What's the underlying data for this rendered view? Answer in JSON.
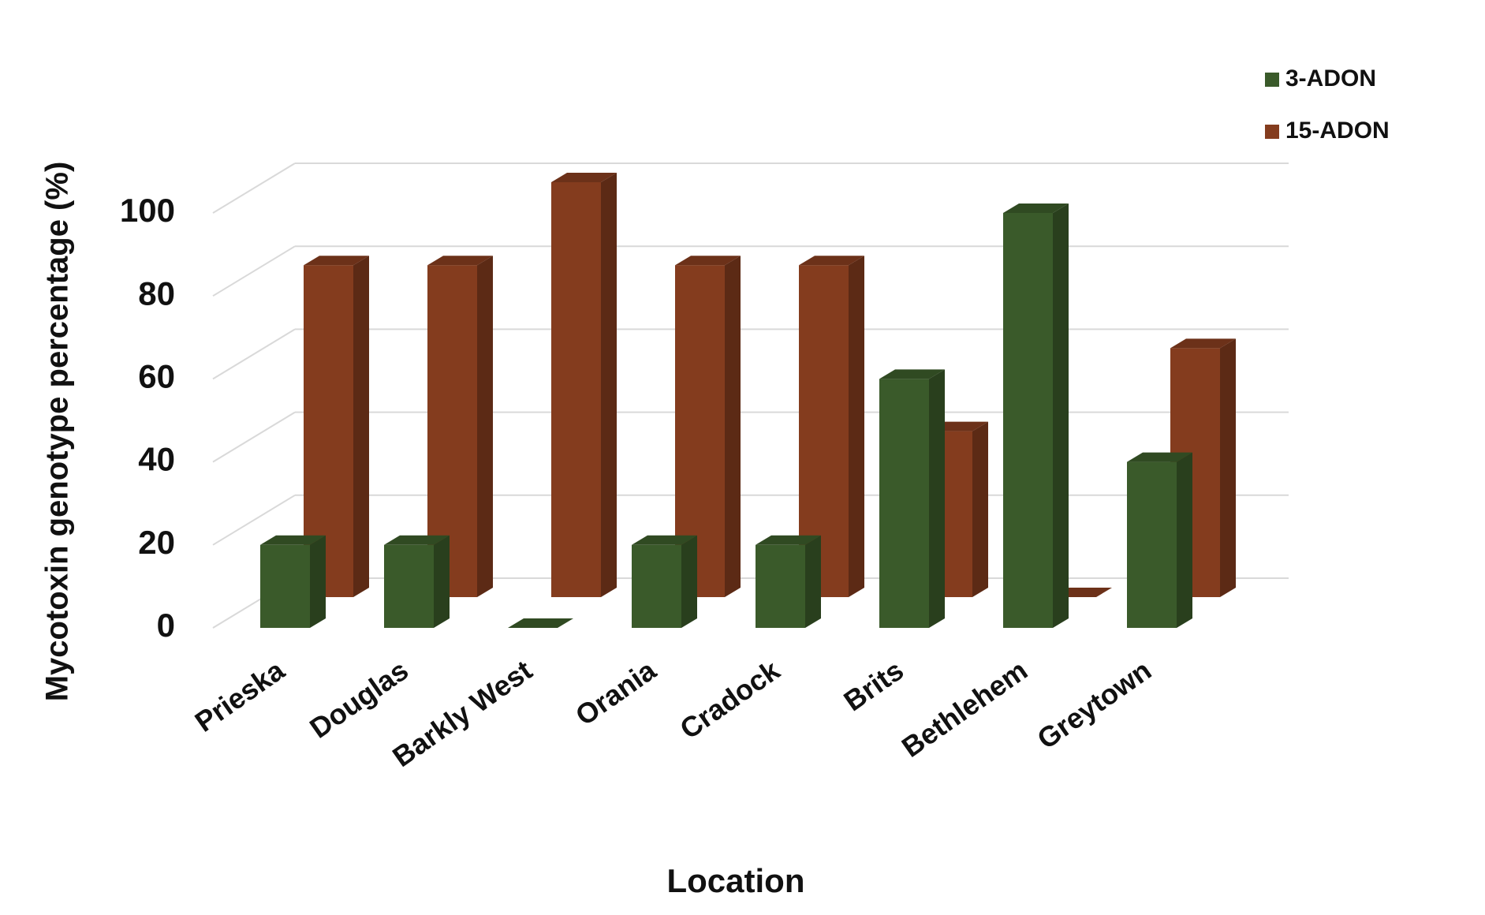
{
  "chart_data": {
    "type": "bar3d",
    "y_label": "Mycotoxin genotype percentage (%)",
    "x_label": "Location",
    "categories": [
      "Prieska",
      "Douglas",
      "Barkly West",
      "Orania",
      "Cradock",
      "Brits",
      "Bethlehem",
      "Greytown"
    ],
    "series": [
      {
        "name": "3-ADON",
        "color": "#3a5a2a",
        "values": [
          20,
          20,
          0,
          20,
          20,
          60,
          100,
          40
        ]
      },
      {
        "name": "15-ADON",
        "color": "#843c1e",
        "values": [
          80,
          80,
          100,
          80,
          80,
          40,
          0,
          60
        ]
      }
    ],
    "ylim": [
      0,
      100
    ],
    "yticks": [
      0,
      20,
      40,
      60,
      80,
      100
    ],
    "grid": true,
    "legend": "top-right"
  }
}
